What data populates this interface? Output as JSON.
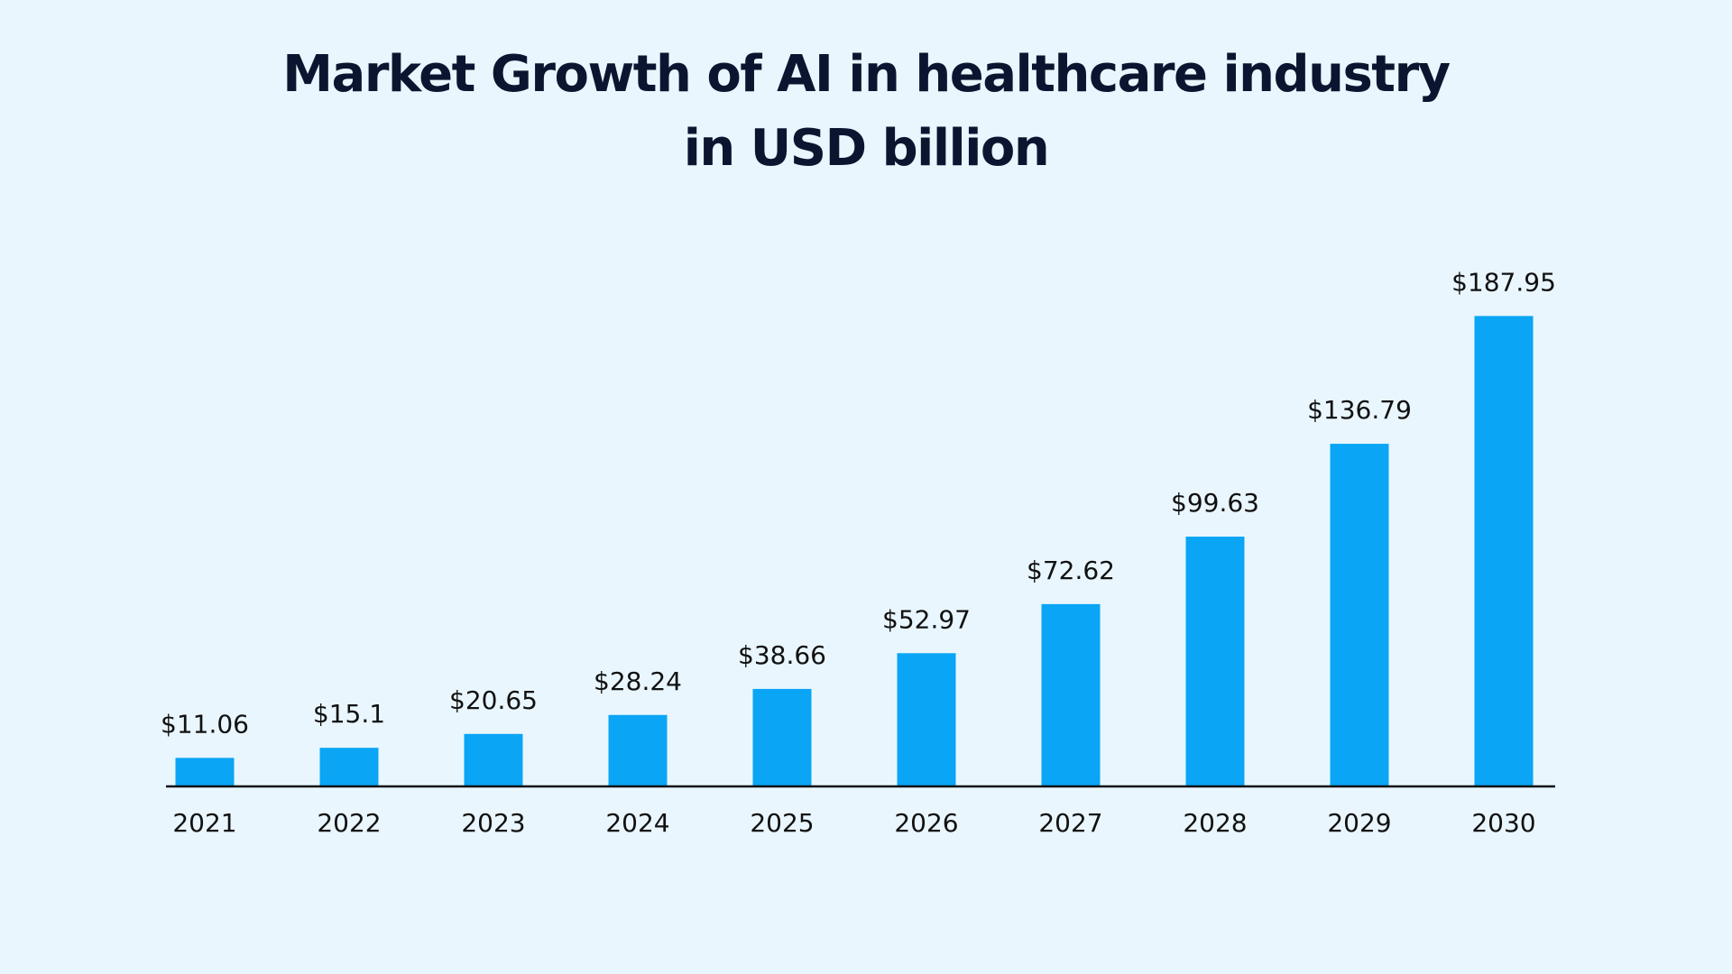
{
  "chart_data": {
    "type": "bar",
    "title_lines": [
      "Market Growth of AI in healthcare industry",
      "in USD billion"
    ],
    "categories": [
      "2021",
      "2022",
      "2023",
      "2024",
      "2025",
      "2026",
      "2027",
      "2028",
      "2029",
      "2030"
    ],
    "values": [
      11.06,
      15.1,
      20.65,
      28.24,
      38.66,
      52.97,
      72.62,
      99.63,
      136.79,
      187.95
    ],
    "value_labels": [
      "$11.06",
      "$15.1",
      "$20.65",
      "$28.24",
      "$38.66",
      "$52.97",
      "$72.62",
      "$99.63",
      "$136.79",
      "$187.95"
    ],
    "ylim": [
      0,
      200
    ],
    "xlabel": "",
    "ylabel": "",
    "grid": false,
    "bar_color": "#0aa5f5",
    "background_color": "#e9f6fe",
    "title_color": "#0c1530"
  }
}
